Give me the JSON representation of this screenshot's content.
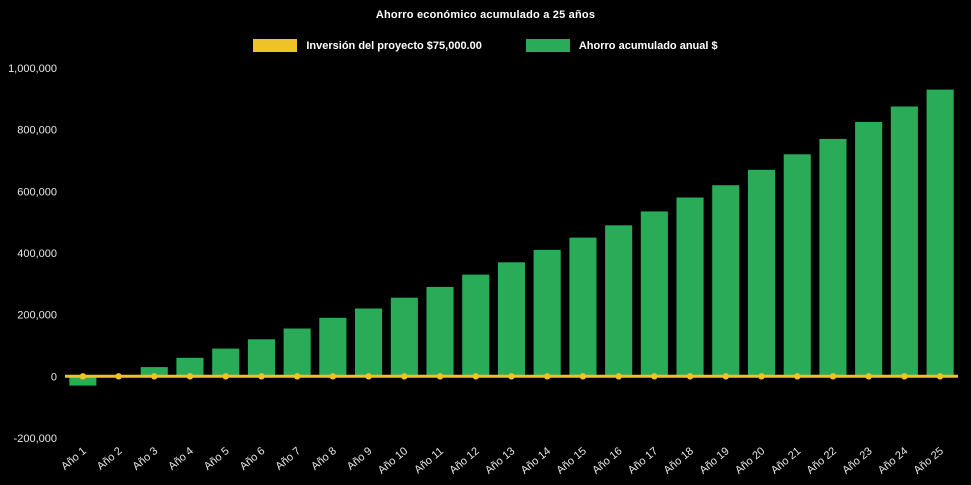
{
  "chart_data": {
    "type": "bar",
    "title": "Ahorro económico acumulado a 25 años",
    "background": "#000000",
    "text_color": "#ffffff",
    "legend_position": "top-center",
    "grid": false,
    "legend": [
      {
        "label": "Inversión del proyecto $75,000.00",
        "color": "#efc228",
        "series_type": "line"
      },
      {
        "label": "Ahorro acumulado anual $",
        "color": "#2aab58",
        "series_type": "bar"
      }
    ],
    "categories": [
      "Año 1",
      "Año 2",
      "Año 3",
      "Año 4",
      "Año 5",
      "Año 6",
      "Año 7",
      "Año 8",
      "Año 9",
      "Año 10",
      "Año 11",
      "Año 12",
      "Año 13",
      "Año 14",
      "Año 15",
      "Año 16",
      "Año 17",
      "Año 18",
      "Año 19",
      "Año 20",
      "Año 21",
      "Año 22",
      "Año 23",
      "Año 24",
      "Año 25"
    ],
    "series": [
      {
        "name": "Ahorro acumulado anual $",
        "type": "bar",
        "color": "#2aab58",
        "values": [
          -30000,
          0,
          30000,
          60000,
          90000,
          120000,
          155000,
          190000,
          220000,
          255000,
          290000,
          330000,
          370000,
          410000,
          450000,
          490000,
          535000,
          580000,
          620000,
          670000,
          720000,
          770000,
          825000,
          875000,
          930000
        ]
      },
      {
        "name": "Inversión del proyecto $75,000.00",
        "type": "line",
        "color": "#efc228",
        "marker": "circle",
        "nominal_value": 75000,
        "plotted_value": 0
      }
    ],
    "ylim": [
      -200000,
      1000000
    ],
    "yticks": [
      {
        "value": 1000000,
        "label": "1,000,000"
      },
      {
        "value": 800000,
        "label": "800,000"
      },
      {
        "value": 600000,
        "label": "600,000"
      },
      {
        "value": 400000,
        "label": "400,000"
      },
      {
        "value": 200000,
        "label": "200,000"
      },
      {
        "value": 0,
        "label": "0"
      },
      {
        "value": -200000,
        "label": "-200,000"
      }
    ]
  }
}
